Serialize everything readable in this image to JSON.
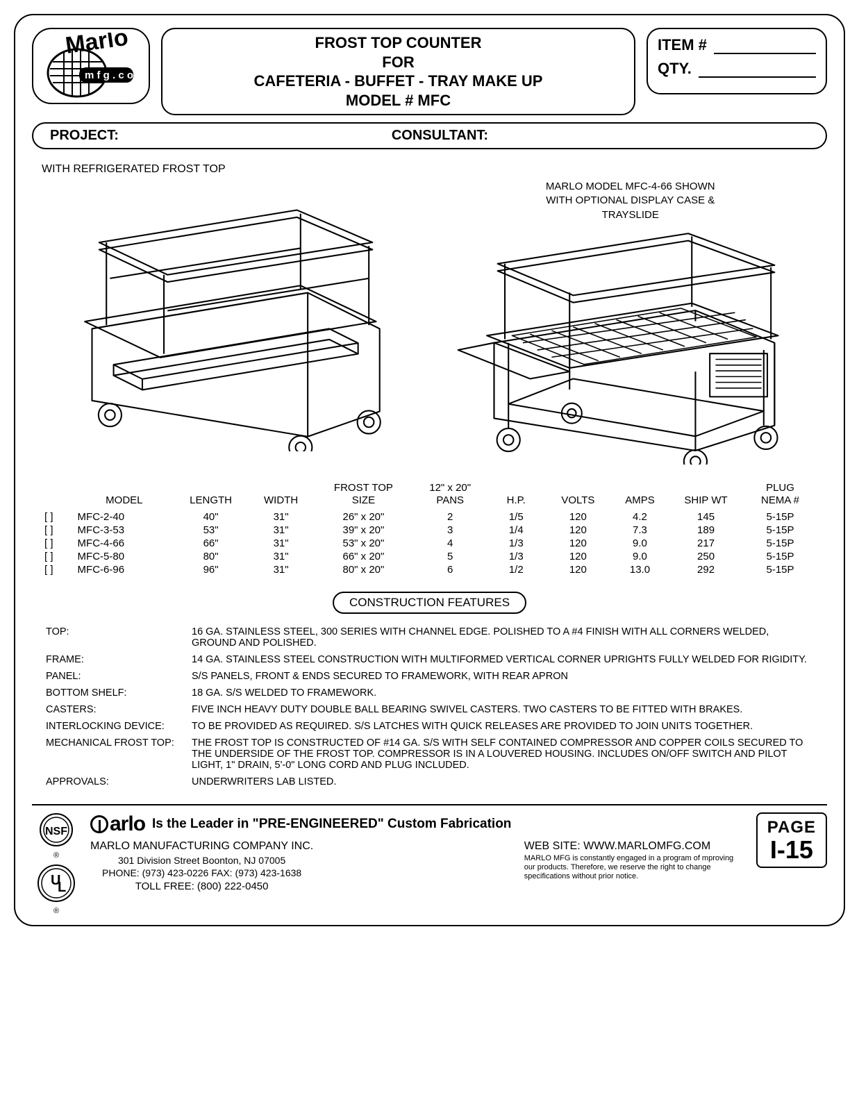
{
  "title": {
    "line1": "FROST TOP COUNTER",
    "line2": "FOR",
    "line3": "CAFETERIA - BUFFET - TRAY MAKE UP",
    "line4": "MODEL # MFC"
  },
  "itemqty": {
    "item_label": "ITEM #",
    "qty_label": "QTY."
  },
  "project_row": {
    "project": "PROJECT:",
    "consultant": "CONSULTANT:"
  },
  "subhead": "WITH REFRIGERATED FROST TOP",
  "figure_caption": {
    "l1": "MARLO MODEL MFC-4-66 SHOWN",
    "l2": "WITH OPTIONAL DISPLAY CASE &",
    "l3": "TRAYSLIDE"
  },
  "spec_table": {
    "headers": {
      "model": "MODEL",
      "length": "LENGTH",
      "width": "WIDTH",
      "frost_top_l1": "FROST TOP",
      "frost_top_l2": "SIZE",
      "pans_l1": "12\" x 20\"",
      "pans_l2": "PANS",
      "hp": "H.P.",
      "volts": "VOLTS",
      "amps": "AMPS",
      "ship_wt": "SHIP WT",
      "plug_l1": "PLUG",
      "plug_l2": "NEMA #"
    },
    "rows": [
      {
        "chk": "[  ]",
        "model": "MFC-2-40",
        "length": "40\"",
        "width": "31\"",
        "ft": "26\" x 20\"",
        "pans": "2",
        "hp": "1/5",
        "volts": "120",
        "amps": "4.2",
        "wt": "145",
        "plug": "5-15P"
      },
      {
        "chk": "[  ]",
        "model": "MFC-3-53",
        "length": "53\"",
        "width": "31\"",
        "ft": "39\" x 20\"",
        "pans": "3",
        "hp": "1/4",
        "volts": "120",
        "amps": "7.3",
        "wt": "189",
        "plug": "5-15P"
      },
      {
        "chk": "[  ]",
        "model": "MFC-4-66",
        "length": "66\"",
        "width": "31\"",
        "ft": "53\" x 20\"",
        "pans": "4",
        "hp": "1/3",
        "volts": "120",
        "amps": "9.0",
        "wt": "217",
        "plug": "5-15P"
      },
      {
        "chk": "[  ]",
        "model": "MFC-5-80",
        "length": "80\"",
        "width": "31\"",
        "ft": "66\" x 20\"",
        "pans": "5",
        "hp": "1/3",
        "volts": "120",
        "amps": "9.0",
        "wt": "250",
        "plug": "5-15P"
      },
      {
        "chk": "[  ]",
        "model": "MFC-6-96",
        "length": "96\"",
        "width": "31\"",
        "ft": "80\" x 20\"",
        "pans": "6",
        "hp": "1/2",
        "volts": "120",
        "amps": "13.0",
        "wt": "292",
        "plug": "5-15P"
      }
    ]
  },
  "cf_heading": "CONSTRUCTION FEATURES",
  "cf": [
    {
      "label": "TOP:",
      "text": "16 GA. STAINLESS STEEL, 300 SERIES WITH CHANNEL EDGE. POLISHED TO A #4 FINISH WITH ALL CORNERS WELDED, GROUND AND POLISHED."
    },
    {
      "label": "FRAME:",
      "text": "14 GA. STAINLESS STEEL CONSTRUCTION WITH MULTIFORMED VERTICAL CORNER UPRIGHTS FULLY WELDED FOR RIGIDITY."
    },
    {
      "label": "PANEL:",
      "text": "S/S PANELS, FRONT & ENDS SECURED TO FRAMEWORK, WITH REAR APRON"
    },
    {
      "label": "BOTTOM SHELF:",
      "text": "18 GA. S/S WELDED TO FRAMEWORK."
    },
    {
      "label": "CASTERS:",
      "text": "FIVE INCH HEAVY DUTY DOUBLE BALL BEARING SWIVEL CASTERS. TWO CASTERS TO BE FITTED WITH BRAKES."
    },
    {
      "label": "INTERLOCKING DEVICE:",
      "text": "TO BE PROVIDED AS REQUIRED. S/S LATCHES WITH QUICK RELEASES ARE PROVIDED TO JOIN UNITS TOGETHER."
    },
    {
      "label": "MECHANICAL FROST TOP:",
      "text": "THE FROST TOP IS CONSTRUCTED OF #14 GA. S/S WITH SELF CONTAINED COMPRESSOR AND COPPER COILS SECURED TO THE UNDERSIDE OF THE FROST TOP. COMPRESSOR IS IN A LOUVERED HOUSING. INCLUDES ON/OFF SWITCH AND PILOT LIGHT, 1\" DRAIN, 5'-0\" LONG CORD AND PLUG INCLUDED."
    },
    {
      "label": "APPROVALS:",
      "text": "UNDERWRITERS LAB LISTED."
    }
  ],
  "footer": {
    "leader": "Is the Leader in \"PRE-ENGINEERED\" Custom Fabrication",
    "company": "MARLO MANUFACTURING COMPANY INC.",
    "address": "301 Division Street    Boonton, NJ 07005",
    "phone": "PHONE: (973) 423-0226  FAX: (973) 423-1638",
    "tollfree": "TOLL FREE: (800) 222-0450",
    "website": "WEB SITE: WWW.MARLOMFG.COM",
    "fineprint": "MARLO MFG is constantly engaged in a program of mproving our products. Therefore, we reserve the right  to change specifications without prior notice.",
    "page_label": "PAGE",
    "page_num": "I-15",
    "reg": "®"
  }
}
